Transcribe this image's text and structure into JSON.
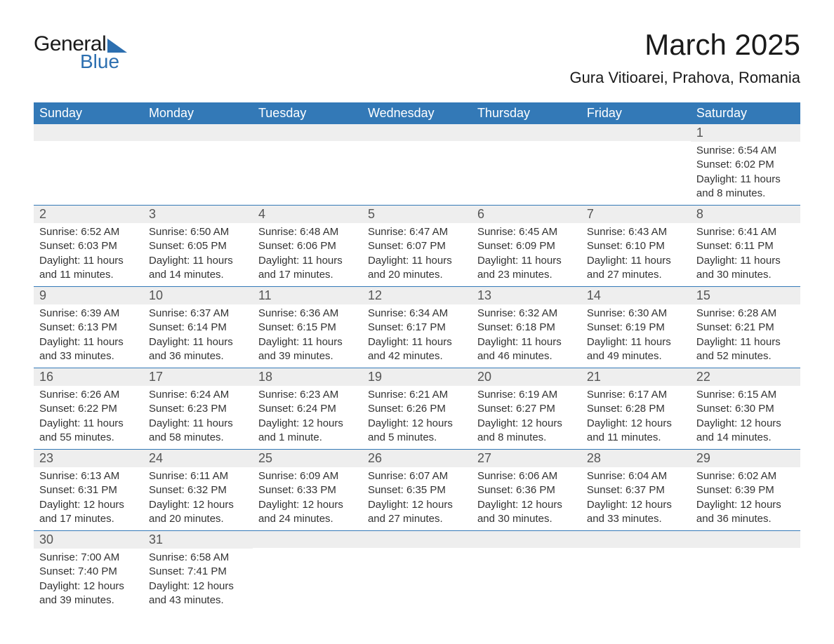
{
  "logo": {
    "text1": "General",
    "text2": "Blue"
  },
  "title": "March 2025",
  "location": "Gura Vitioarei, Prahova, Romania",
  "colors": {
    "header_bg": "#3379b7",
    "header_text": "#ffffff",
    "daynum_bg": "#eeeeee",
    "daynum_text": "#555555",
    "body_text": "#333333",
    "logo_blue": "#2c6fb0",
    "border": "#3379b7"
  },
  "weekdays": [
    "Sunday",
    "Monday",
    "Tuesday",
    "Wednesday",
    "Thursday",
    "Friday",
    "Saturday"
  ],
  "weeks": [
    [
      {
        "day": "",
        "sunrise": "",
        "sunset": "",
        "daylight": ""
      },
      {
        "day": "",
        "sunrise": "",
        "sunset": "",
        "daylight": ""
      },
      {
        "day": "",
        "sunrise": "",
        "sunset": "",
        "daylight": ""
      },
      {
        "day": "",
        "sunrise": "",
        "sunset": "",
        "daylight": ""
      },
      {
        "day": "",
        "sunrise": "",
        "sunset": "",
        "daylight": ""
      },
      {
        "day": "",
        "sunrise": "",
        "sunset": "",
        "daylight": ""
      },
      {
        "day": "1",
        "sunrise": "Sunrise: 6:54 AM",
        "sunset": "Sunset: 6:02 PM",
        "daylight": "Daylight: 11 hours and 8 minutes."
      }
    ],
    [
      {
        "day": "2",
        "sunrise": "Sunrise: 6:52 AM",
        "sunset": "Sunset: 6:03 PM",
        "daylight": "Daylight: 11 hours and 11 minutes."
      },
      {
        "day": "3",
        "sunrise": "Sunrise: 6:50 AM",
        "sunset": "Sunset: 6:05 PM",
        "daylight": "Daylight: 11 hours and 14 minutes."
      },
      {
        "day": "4",
        "sunrise": "Sunrise: 6:48 AM",
        "sunset": "Sunset: 6:06 PM",
        "daylight": "Daylight: 11 hours and 17 minutes."
      },
      {
        "day": "5",
        "sunrise": "Sunrise: 6:47 AM",
        "sunset": "Sunset: 6:07 PM",
        "daylight": "Daylight: 11 hours and 20 minutes."
      },
      {
        "day": "6",
        "sunrise": "Sunrise: 6:45 AM",
        "sunset": "Sunset: 6:09 PM",
        "daylight": "Daylight: 11 hours and 23 minutes."
      },
      {
        "day": "7",
        "sunrise": "Sunrise: 6:43 AM",
        "sunset": "Sunset: 6:10 PM",
        "daylight": "Daylight: 11 hours and 27 minutes."
      },
      {
        "day": "8",
        "sunrise": "Sunrise: 6:41 AM",
        "sunset": "Sunset: 6:11 PM",
        "daylight": "Daylight: 11 hours and 30 minutes."
      }
    ],
    [
      {
        "day": "9",
        "sunrise": "Sunrise: 6:39 AM",
        "sunset": "Sunset: 6:13 PM",
        "daylight": "Daylight: 11 hours and 33 minutes."
      },
      {
        "day": "10",
        "sunrise": "Sunrise: 6:37 AM",
        "sunset": "Sunset: 6:14 PM",
        "daylight": "Daylight: 11 hours and 36 minutes."
      },
      {
        "day": "11",
        "sunrise": "Sunrise: 6:36 AM",
        "sunset": "Sunset: 6:15 PM",
        "daylight": "Daylight: 11 hours and 39 minutes."
      },
      {
        "day": "12",
        "sunrise": "Sunrise: 6:34 AM",
        "sunset": "Sunset: 6:17 PM",
        "daylight": "Daylight: 11 hours and 42 minutes."
      },
      {
        "day": "13",
        "sunrise": "Sunrise: 6:32 AM",
        "sunset": "Sunset: 6:18 PM",
        "daylight": "Daylight: 11 hours and 46 minutes."
      },
      {
        "day": "14",
        "sunrise": "Sunrise: 6:30 AM",
        "sunset": "Sunset: 6:19 PM",
        "daylight": "Daylight: 11 hours and 49 minutes."
      },
      {
        "day": "15",
        "sunrise": "Sunrise: 6:28 AM",
        "sunset": "Sunset: 6:21 PM",
        "daylight": "Daylight: 11 hours and 52 minutes."
      }
    ],
    [
      {
        "day": "16",
        "sunrise": "Sunrise: 6:26 AM",
        "sunset": "Sunset: 6:22 PM",
        "daylight": "Daylight: 11 hours and 55 minutes."
      },
      {
        "day": "17",
        "sunrise": "Sunrise: 6:24 AM",
        "sunset": "Sunset: 6:23 PM",
        "daylight": "Daylight: 11 hours and 58 minutes."
      },
      {
        "day": "18",
        "sunrise": "Sunrise: 6:23 AM",
        "sunset": "Sunset: 6:24 PM",
        "daylight": "Daylight: 12 hours and 1 minute."
      },
      {
        "day": "19",
        "sunrise": "Sunrise: 6:21 AM",
        "sunset": "Sunset: 6:26 PM",
        "daylight": "Daylight: 12 hours and 5 minutes."
      },
      {
        "day": "20",
        "sunrise": "Sunrise: 6:19 AM",
        "sunset": "Sunset: 6:27 PM",
        "daylight": "Daylight: 12 hours and 8 minutes."
      },
      {
        "day": "21",
        "sunrise": "Sunrise: 6:17 AM",
        "sunset": "Sunset: 6:28 PM",
        "daylight": "Daylight: 12 hours and 11 minutes."
      },
      {
        "day": "22",
        "sunrise": "Sunrise: 6:15 AM",
        "sunset": "Sunset: 6:30 PM",
        "daylight": "Daylight: 12 hours and 14 minutes."
      }
    ],
    [
      {
        "day": "23",
        "sunrise": "Sunrise: 6:13 AM",
        "sunset": "Sunset: 6:31 PM",
        "daylight": "Daylight: 12 hours and 17 minutes."
      },
      {
        "day": "24",
        "sunrise": "Sunrise: 6:11 AM",
        "sunset": "Sunset: 6:32 PM",
        "daylight": "Daylight: 12 hours and 20 minutes."
      },
      {
        "day": "25",
        "sunrise": "Sunrise: 6:09 AM",
        "sunset": "Sunset: 6:33 PM",
        "daylight": "Daylight: 12 hours and 24 minutes."
      },
      {
        "day": "26",
        "sunrise": "Sunrise: 6:07 AM",
        "sunset": "Sunset: 6:35 PM",
        "daylight": "Daylight: 12 hours and 27 minutes."
      },
      {
        "day": "27",
        "sunrise": "Sunrise: 6:06 AM",
        "sunset": "Sunset: 6:36 PM",
        "daylight": "Daylight: 12 hours and 30 minutes."
      },
      {
        "day": "28",
        "sunrise": "Sunrise: 6:04 AM",
        "sunset": "Sunset: 6:37 PM",
        "daylight": "Daylight: 12 hours and 33 minutes."
      },
      {
        "day": "29",
        "sunrise": "Sunrise: 6:02 AM",
        "sunset": "Sunset: 6:39 PM",
        "daylight": "Daylight: 12 hours and 36 minutes."
      }
    ],
    [
      {
        "day": "30",
        "sunrise": "Sunrise: 7:00 AM",
        "sunset": "Sunset: 7:40 PM",
        "daylight": "Daylight: 12 hours and 39 minutes."
      },
      {
        "day": "31",
        "sunrise": "Sunrise: 6:58 AM",
        "sunset": "Sunset: 7:41 PM",
        "daylight": "Daylight: 12 hours and 43 minutes."
      },
      {
        "day": "",
        "sunrise": "",
        "sunset": "",
        "daylight": ""
      },
      {
        "day": "",
        "sunrise": "",
        "sunset": "",
        "daylight": ""
      },
      {
        "day": "",
        "sunrise": "",
        "sunset": "",
        "daylight": ""
      },
      {
        "day": "",
        "sunrise": "",
        "sunset": "",
        "daylight": ""
      },
      {
        "day": "",
        "sunrise": "",
        "sunset": "",
        "daylight": ""
      }
    ]
  ]
}
